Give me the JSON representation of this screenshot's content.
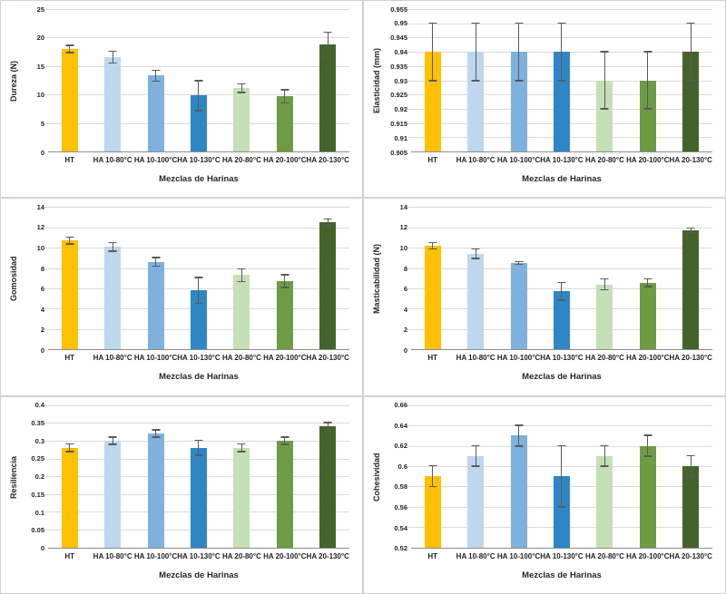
{
  "figure": {
    "x_axis_title": "Mezclas de Harinas",
    "categories": [
      "HT",
      "HA 10-80°C",
      "HA 10-100°C",
      "HA 10-130°C",
      "HA 20-80°C",
      "HA 20-100°C",
      "HA 20-130°C"
    ],
    "bar_colors": [
      "#FFC000",
      "#BDD7EE",
      "#7EB1DE",
      "#2E86C6",
      "#C5E0B4",
      "#6D9C45",
      "#44632B"
    ],
    "error_bar_color": "#5a5a5a",
    "gridline_color": "#dadada",
    "axis_line_color": "#8c8c8c",
    "panel_border_color": "#ccd3de"
  },
  "chart_data": [
    {
      "type": "bar",
      "title": "",
      "ylabel": "Dureza (N)",
      "xlabel": "Mezclas de Harinas",
      "categories": [
        "HT",
        "HA 10-80°C",
        "HA 10-100°C",
        "HA 10-130°C",
        "HA 20-80°C",
        "HA 20-100°C",
        "HA 20-130°C"
      ],
      "values": [
        18.0,
        16.6,
        13.3,
        9.8,
        11.1,
        9.7,
        18.8
      ],
      "errors": [
        0.6,
        1.0,
        0.9,
        2.6,
        0.7,
        1.1,
        2.1
      ],
      "ylim": [
        0,
        25
      ],
      "yticks": [
        "0",
        "5",
        "10",
        "15",
        "20",
        "25"
      ],
      "grid": true,
      "legend": "none"
    },
    {
      "type": "bar",
      "title": "",
      "ylabel": "Elasticidad (mm)",
      "xlabel": "Mezclas de Harinas",
      "categories": [
        "HT",
        "HA 10-80°C",
        "HA 10-100°C",
        "HA 10-130°C",
        "HA 20-80°C",
        "HA 20-100°C",
        "HA 20-130°C"
      ],
      "values": [
        0.94,
        0.94,
        0.94,
        0.94,
        0.93,
        0.93,
        0.94
      ],
      "errors": [
        0.01,
        0.01,
        0.01,
        0.01,
        0.01,
        0.01,
        0.01
      ],
      "ylim": [
        0.905,
        0.955
      ],
      "yticks": [
        "0.905",
        "0.91",
        "0.915",
        "0.92",
        "0.925",
        "0.93",
        "0.935",
        "0.94",
        "0.945",
        "0.95",
        "0.955"
      ],
      "grid": true,
      "legend": "none"
    },
    {
      "type": "bar",
      "title": "",
      "ylabel": "Gomosidad",
      "xlabel": "Mezclas de Harinas",
      "categories": [
        "HT",
        "HA 10-80°C",
        "HA 10-100°C",
        "HA 10-130°C",
        "HA 20-80°C",
        "HA 20-100°C",
        "HA 20-130°C"
      ],
      "values": [
        10.7,
        10.1,
        8.6,
        5.8,
        7.3,
        6.7,
        12.5
      ],
      "errors": [
        0.3,
        0.4,
        0.4,
        1.25,
        0.6,
        0.6,
        0.3
      ],
      "ylim": [
        0,
        14
      ],
      "yticks": [
        "0",
        "2",
        "4",
        "6",
        "8",
        "10",
        "12",
        "14"
      ],
      "grid": true,
      "legend": "none"
    },
    {
      "type": "bar",
      "title": "",
      "ylabel": "Masticabilidad (N)",
      "xlabel": "Mezclas de Harinas",
      "categories": [
        "HT",
        "HA 10-80°C",
        "HA 10-100°C",
        "HA 10-130°C",
        "HA 20-80°C",
        "HA 20-100°C",
        "HA 20-130°C"
      ],
      "values": [
        10.2,
        9.4,
        8.5,
        5.7,
        6.4,
        6.55,
        11.7
      ],
      "errors": [
        0.3,
        0.45,
        0.1,
        0.85,
        0.5,
        0.35,
        0.2
      ],
      "ylim": [
        0,
        14
      ],
      "yticks": [
        "0",
        "2",
        "4",
        "6",
        "8",
        "10",
        "12",
        "14"
      ],
      "grid": true,
      "legend": "none"
    },
    {
      "type": "bar",
      "title": "",
      "ylabel": "Resiliencia",
      "xlabel": "Mezclas de Harinas",
      "categories": [
        "HT",
        "HA 10-80°C",
        "HA 10-100°C",
        "HA 10-130°C",
        "HA 20-80°C",
        "HA 20-100°C",
        "HA 20-130°C"
      ],
      "values": [
        0.28,
        0.3,
        0.32,
        0.28,
        0.28,
        0.3,
        0.34
      ],
      "errors": [
        0.01,
        0.01,
        0.01,
        0.02,
        0.01,
        0.01,
        0.01
      ],
      "ylim": [
        0,
        0.4
      ],
      "yticks": [
        "0",
        "0.05",
        "0.1",
        "0.15",
        "0.2",
        "0.25",
        "0.3",
        "0.35",
        "0.4"
      ],
      "grid": true,
      "legend": "none"
    },
    {
      "type": "bar",
      "title": "",
      "ylabel": "Cohesividad",
      "xlabel": "Mezclas de Harinas",
      "categories": [
        "HT",
        "HA 10-80°C",
        "HA 10-100°C",
        "HA 10-130°C",
        "HA 20-80°C",
        "HA 20-100°C",
        "HA 20-130°C"
      ],
      "values": [
        0.59,
        0.61,
        0.63,
        0.59,
        0.61,
        0.62,
        0.6
      ],
      "errors": [
        0.01,
        0.01,
        0.01,
        0.03,
        0.01,
        0.01,
        0.01
      ],
      "ylim": [
        0.52,
        0.66
      ],
      "yticks": [
        "0.52",
        "0.54",
        "0.56",
        "0.58",
        "0.6",
        "0.62",
        "0.64",
        "0.66"
      ],
      "grid": true,
      "legend": "none"
    }
  ]
}
